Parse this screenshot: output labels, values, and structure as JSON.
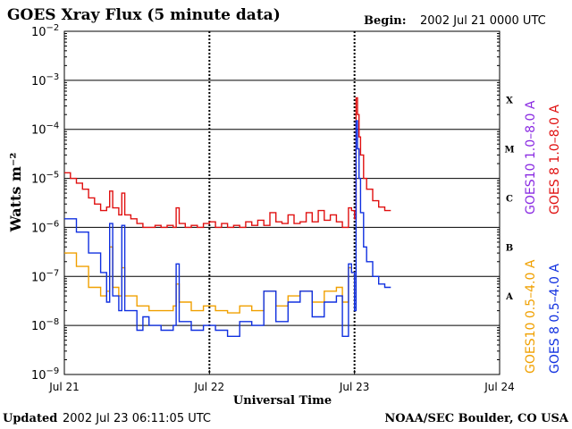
{
  "header": {
    "title": "GOES Xray Flux (5 minute data)",
    "begin_label": "Begin:",
    "begin_value": "2002 Jul 21 0000 UTC"
  },
  "footer": {
    "updated_label": "Updated",
    "updated_value": "2002 Jul 23 06:11:05 UTC",
    "credit": "NOAA/SEC Boulder, CO USA"
  },
  "chart_data": {
    "type": "line",
    "title": "GOES Xray Flux (5 minute data)",
    "xlabel": "Universal Time",
    "ylabel": "Watts m⁻²",
    "y_scale": "log",
    "ylim": [
      1e-09,
      0.01
    ],
    "xlim": [
      "2002-07-21 00:00",
      "2002-07-24 00:00"
    ],
    "y_ticks": [
      {
        "value": 1e-09,
        "mantissa": "10",
        "exp": "-9"
      },
      {
        "value": 1e-08,
        "mantissa": "10",
        "exp": "-8"
      },
      {
        "value": 1e-07,
        "mantissa": "10",
        "exp": "-7"
      },
      {
        "value": 1e-06,
        "mantissa": "10",
        "exp": "-6"
      },
      {
        "value": 1e-05,
        "mantissa": "10",
        "exp": "-5"
      },
      {
        "value": 0.0001,
        "mantissa": "10",
        "exp": "-4"
      },
      {
        "value": 0.001,
        "mantissa": "10",
        "exp": "-3"
      },
      {
        "value": 0.01,
        "mantissa": "10",
        "exp": "-2"
      }
    ],
    "x_ticks": [
      {
        "value": "2002-07-21 00:00",
        "label": "Jul 21"
      },
      {
        "value": "2002-07-22 00:00",
        "label": "Jul 22"
      },
      {
        "value": "2002-07-23 00:00",
        "label": "Jul 23"
      },
      {
        "value": "2002-07-24 00:00",
        "label": "Jul 24"
      }
    ],
    "flare_classes": [
      {
        "label": "X",
        "value": 0.0004
      },
      {
        "label": "M",
        "value": 4e-05
      },
      {
        "label": "C",
        "value": 4e-06
      },
      {
        "label": "B",
        "value": 4e-07
      },
      {
        "label": "A",
        "value": 4e-08
      }
    ],
    "grid": "horizontal lines at each decade from 1e-8 to 1e-3; dashed vertical lines at day boundaries",
    "series": [
      {
        "name": "GOES10 1.0–8.0 A",
        "color": "#8a2be2",
        "x": [],
        "values": []
      },
      {
        "name": "GOES 8 1.0–8.0 A",
        "color": "#e01010",
        "x": [
          "2002-07-21 00:00",
          "2002-07-21 01:00",
          "2002-07-21 02:00",
          "2002-07-21 03:00",
          "2002-07-21 04:00",
          "2002-07-21 05:00",
          "2002-07-21 06:00",
          "2002-07-21 07:00",
          "2002-07-21 07:30",
          "2002-07-21 08:00",
          "2002-07-21 09:00",
          "2002-07-21 09:30",
          "2002-07-21 10:00",
          "2002-07-21 11:00",
          "2002-07-21 12:00",
          "2002-07-21 13:00",
          "2002-07-21 14:00",
          "2002-07-21 15:00",
          "2002-07-21 16:00",
          "2002-07-21 17:00",
          "2002-07-21 18:00",
          "2002-07-21 18:30",
          "2002-07-21 19:00",
          "2002-07-21 20:00",
          "2002-07-21 21:00",
          "2002-07-21 22:00",
          "2002-07-21 23:00",
          "2002-07-22 00:00",
          "2002-07-22 01:00",
          "2002-07-22 02:00",
          "2002-07-22 03:00",
          "2002-07-22 04:00",
          "2002-07-22 05:00",
          "2002-07-22 06:00",
          "2002-07-22 07:00",
          "2002-07-22 08:00",
          "2002-07-22 09:00",
          "2002-07-22 10:00",
          "2002-07-22 11:00",
          "2002-07-22 12:00",
          "2002-07-22 13:00",
          "2002-07-22 14:00",
          "2002-07-22 15:00",
          "2002-07-22 16:00",
          "2002-07-22 17:00",
          "2002-07-22 18:00",
          "2002-07-22 19:00",
          "2002-07-22 20:00",
          "2002-07-22 21:00",
          "2002-07-22 22:00",
          "2002-07-22 23:00",
          "2002-07-22 23:30",
          "2002-07-23 00:00",
          "2002-07-23 00:15",
          "2002-07-23 00:30",
          "2002-07-23 00:45",
          "2002-07-23 01:00",
          "2002-07-23 01:30",
          "2002-07-23 02:00",
          "2002-07-23 03:00",
          "2002-07-23 04:00",
          "2002-07-23 05:00",
          "2002-07-23 06:00"
        ],
        "values": [
          1.3e-05,
          1e-05,
          8e-06,
          6e-06,
          4e-06,
          3e-06,
          2.2e-06,
          2.6e-06,
          5.5e-06,
          2.5e-06,
          1.8e-06,
          5e-06,
          1.8e-06,
          1.5e-06,
          1.2e-06,
          1e-06,
          1e-06,
          1.1e-06,
          1e-06,
          1.1e-06,
          1e-06,
          2.5e-06,
          1.2e-06,
          1e-06,
          1.1e-06,
          1e-06,
          1.2e-06,
          1.3e-06,
          1e-06,
          1.2e-06,
          1e-06,
          1.1e-06,
          1e-06,
          1.3e-06,
          1.1e-06,
          1.4e-06,
          1.1e-06,
          2e-06,
          1.3e-06,
          1.2e-06,
          1.8e-06,
          1.2e-06,
          1.3e-06,
          2e-06,
          1.3e-06,
          2.2e-06,
          1.4e-06,
          1.8e-06,
          1.3e-06,
          1e-06,
          2.5e-06,
          2.2e-06,
          1.5e-06,
          0.00044,
          0.0002,
          7e-05,
          3e-05,
          1e-05,
          6e-06,
          3.5e-06,
          2.6e-06,
          2.2e-06,
          2.2e-06
        ]
      },
      {
        "name": "GOES10 0.5–4.0 A",
        "color": "#f0a000",
        "x": [
          "2002-07-21 00:00",
          "2002-07-21 02:00",
          "2002-07-21 04:00",
          "2002-07-21 06:00",
          "2002-07-21 07:00",
          "2002-07-21 07:30",
          "2002-07-21 08:00",
          "2002-07-21 09:00",
          "2002-07-21 09:30",
          "2002-07-21 10:00",
          "2002-07-21 12:00",
          "2002-07-21 14:00",
          "2002-07-21 16:00",
          "2002-07-21 18:00",
          "2002-07-21 18:30",
          "2002-07-21 19:00",
          "2002-07-21 21:00",
          "2002-07-21 23:00",
          "2002-07-22 01:00",
          "2002-07-22 03:00",
          "2002-07-22 05:00",
          "2002-07-22 07:00",
          "2002-07-22 09:00",
          "2002-07-22 11:00",
          "2002-07-22 13:00",
          "2002-07-22 15:00",
          "2002-07-22 17:00",
          "2002-07-22 19:00",
          "2002-07-22 21:00",
          "2002-07-22 22:00",
          "2002-07-22 23:00",
          "2002-07-22 23:30",
          "2002-07-23 00:00"
        ],
        "values": [
          3e-07,
          1.6e-07,
          6e-08,
          4e-08,
          5e-08,
          4e-07,
          6e-08,
          4e-08,
          1.5e-07,
          4e-08,
          2.5e-08,
          2e-08,
          2e-08,
          2.5e-08,
          7e-08,
          3e-08,
          2e-08,
          2.5e-08,
          2e-08,
          1.8e-08,
          2.5e-08,
          2e-08,
          5e-08,
          2.5e-08,
          4e-08,
          5e-08,
          3e-08,
          5e-08,
          6e-08,
          3e-08,
          1.5e-07,
          1.2e-07,
          4e-08
        ]
      },
      {
        "name": "GOES 8 0.5–4.0 A",
        "color": "#1030e0",
        "x": [
          "2002-07-21 00:00",
          "2002-07-21 02:00",
          "2002-07-21 04:00",
          "2002-07-21 06:00",
          "2002-07-21 07:00",
          "2002-07-21 07:30",
          "2002-07-21 08:00",
          "2002-07-21 09:00",
          "2002-07-21 09:30",
          "2002-07-21 10:00",
          "2002-07-21 12:00",
          "2002-07-21 13:00",
          "2002-07-21 14:00",
          "2002-07-21 16:00",
          "2002-07-21 18:00",
          "2002-07-21 18:30",
          "2002-07-21 19:00",
          "2002-07-21 21:00",
          "2002-07-21 23:00",
          "2002-07-22 01:00",
          "2002-07-22 03:00",
          "2002-07-22 05:00",
          "2002-07-22 07:00",
          "2002-07-22 09:00",
          "2002-07-22 11:00",
          "2002-07-22 13:00",
          "2002-07-22 15:00",
          "2002-07-22 17:00",
          "2002-07-22 19:00",
          "2002-07-22 21:00",
          "2002-07-22 22:00",
          "2002-07-22 23:00",
          "2002-07-22 23:30",
          "2002-07-23 00:00",
          "2002-07-23 00:15",
          "2002-07-23 00:30",
          "2002-07-23 00:45",
          "2002-07-23 01:00",
          "2002-07-23 01:30",
          "2002-07-23 02:00",
          "2002-07-23 03:00",
          "2002-07-23 04:00",
          "2002-07-23 05:00",
          "2002-07-23 06:00"
        ],
        "values": [
          1.5e-06,
          8e-07,
          3e-07,
          1.2e-07,
          3e-08,
          1.2e-06,
          4e-08,
          2e-08,
          1.1e-06,
          2e-08,
          8e-09,
          1.5e-08,
          1e-08,
          8e-09,
          1e-08,
          1.8e-07,
          1.2e-08,
          8e-09,
          1e-08,
          8e-09,
          6e-09,
          1.2e-08,
          1e-08,
          5e-08,
          1.2e-08,
          3e-08,
          5e-08,
          1.5e-08,
          3e-08,
          4e-08,
          6e-09,
          1.8e-07,
          1.2e-07,
          2e-08,
          0.00015,
          4e-05,
          1e-05,
          2e-06,
          4e-07,
          2e-07,
          1e-07,
          7e-08,
          6e-08,
          6e-08
        ]
      }
    ]
  }
}
